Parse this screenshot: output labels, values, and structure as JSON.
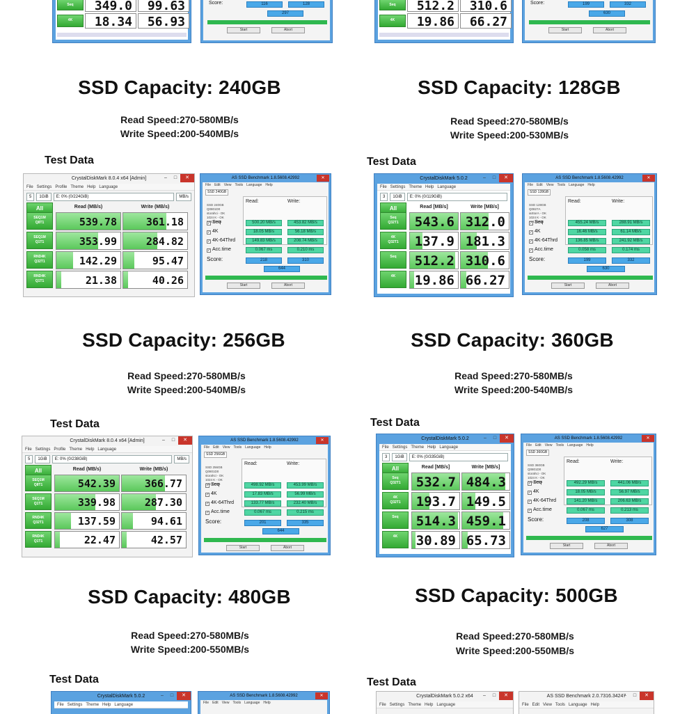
{
  "common": {
    "read_prefix": "Read Speed:",
    "write_prefix": "Write Speed:",
    "test_data": "Test Data"
  },
  "panels": [
    {
      "capacity": "SSD Capacity: 240GB",
      "read": "Read Speed:270-580MB/s",
      "write": "Write Speed:200-540MB/s"
    },
    {
      "capacity": "SSD Capacity: 128GB",
      "read": "Read Speed:270-580MB/s",
      "write": "Write Speed:200-530MB/s"
    },
    {
      "capacity": "SSD Capacity: 256GB",
      "read": "Read Speed:270-580MB/s",
      "write": "Write Speed:200-540MB/s"
    },
    {
      "capacity": "SSD Capacity: 360GB",
      "read": "Read Speed:270-580MB/s",
      "write": "Write Speed:200-540MB/s"
    },
    {
      "capacity": "SSD Capacity: 480GB",
      "read": "Read Speed:270-580MB/s",
      "write": "Write Speed:200-550MB/s"
    },
    {
      "capacity": "SSD Capacity: 500GB",
      "read": "Read Speed:270-580MB/s",
      "write": "Write Speed:200-550MB/s"
    }
  ],
  "top_partial": {
    "left_cdm": {
      "row1": [
        "349.0",
        "99.63"
      ],
      "row2": [
        "18.34",
        "56.93"
      ],
      "row2_label": "4K",
      "row1_label": "Seq"
    },
    "left_asssd": {
      "score_label": "Score:",
      "read_score": "116",
      "write_score": "128",
      "total": "297",
      "start": "Start",
      "abort": "Abort"
    },
    "right_cdm": {
      "row1": [
        "512.2",
        "310.6"
      ],
      "row2": [
        "19.86",
        "66.27"
      ],
      "row2_label": "4K",
      "row1_label": "Seq"
    },
    "right_asssd": {
      "score_label": "Score:",
      "read_score": "199",
      "write_score": "332",
      "total": "630",
      "start": "Start",
      "abort": "Abort"
    }
  },
  "cdm8": {
    "menu": [
      "File",
      "Settings",
      "Profile",
      "Theme",
      "Help",
      "Language"
    ],
    "all": "All",
    "read_hdr": "Read (MB/s)",
    "write_hdr": "Write (MB/s)",
    "count": "5",
    "size": "1GiB",
    "unit": "MB/s",
    "row_labels": [
      [
        "SEQ1M",
        "Q8T1"
      ],
      [
        "SEQ1M",
        "Q1T1"
      ],
      [
        "RND4K",
        "Q32T1"
      ],
      [
        "RND4K",
        "Q1T1"
      ]
    ]
  },
  "cdm5": {
    "menu": [
      "File",
      "Settings",
      "Theme",
      "Help",
      "Language"
    ],
    "all": "All",
    "read_hdr": "Read [MB/s]",
    "write_hdr": "Write [MB/s]",
    "count": "3",
    "size": "1GiB",
    "row_labels": [
      [
        "Seq",
        "Q32T1"
      ],
      [
        "4K",
        "Q32T1"
      ],
      [
        "Seq",
        ""
      ],
      [
        "4K",
        ""
      ]
    ]
  },
  "asssd_common": {
    "menu": [
      "File",
      "Edit",
      "View",
      "Tools",
      "Language",
      "Help"
    ],
    "read_hdr": "Read:",
    "write_hdr": "Write:",
    "tests": [
      "Seq",
      "4K",
      "4K-64Thrd",
      "Acc.time"
    ],
    "score_label": "Score:",
    "start": "Start",
    "abort": "Abort"
  },
  "benchmarks": [
    {
      "cdm_title": "CrystalDiskMark 8.0.4 x64 [Admin]",
      "drive": "E: 0% (0/224GiB)",
      "values": [
        [
          "539.78",
          "361.18"
        ],
        [
          "353.99",
          "284.82"
        ],
        [
          "142.29",
          "95.47"
        ],
        [
          "21.38",
          "40.26"
        ]
      ],
      "as_title": "AS SSD Benchmark 1.8.5608.42992",
      "as_values": [
        [
          "500.20 MB/s",
          "453.82 MB/s"
        ],
        [
          "18.05 MB/s",
          "56.18 MB/s"
        ],
        [
          "149.83 MB/s",
          "208.74 MB/s"
        ],
        [
          "0.067 ms",
          "0.210 ms"
        ]
      ],
      "as_scores": [
        "218",
        "310",
        "644"
      ],
      "as_info": [
        "SSD 240GB",
        "Q0801D0",
        "storahci - OK",
        "1024 K - OK",
        "223.57 GB"
      ]
    },
    {
      "cdm_title": "CrystalDiskMark 5.0.2",
      "drive": "E: 0% (0/119GiB)",
      "values": [
        [
          "543.6",
          "312.0"
        ],
        [
          "137.9",
          "181.3"
        ],
        [
          "512.2",
          "310.6"
        ],
        [
          "19.86",
          "66.27"
        ]
      ],
      "as_title": "AS SSD Benchmark 1.8.5608.42992",
      "as_values": [
        [
          "455.24 MB/s",
          "288.91 MB/s"
        ],
        [
          "16.46 MB/s",
          "61.14 MB/s"
        ],
        [
          "136.85 MB/s",
          "241.92 MB/s"
        ],
        [
          "0.058 ms",
          "0.174 ms"
        ]
      ],
      "as_scores": [
        "199",
        "332",
        "630"
      ],
      "as_info": [
        "SSD 128GB",
        "Q0827A",
        "iaStorA - OK",
        "1024 K - OK",
        "119.24 GB"
      ]
    },
    {
      "cdm_title": "CrystalDiskMark 8.0.4 x64 [Admin]",
      "drive": "E: 0% (0/238GiB)",
      "values": [
        [
          "542.39",
          "366.77"
        ],
        [
          "339.98",
          "287.30"
        ],
        [
          "137.59",
          "94.61"
        ],
        [
          "22.47",
          "42.57"
        ]
      ],
      "as_title": "AS SSD Benchmark 1.8.5608.42992",
      "as_values": [
        [
          "498.92 MB/s",
          "453.99 MB/s"
        ],
        [
          "17.83 MB/s",
          "56.99 MB/s"
        ],
        [
          "133.77 MB/s",
          "232.40 MB/s"
        ],
        [
          "0.067 ms",
          "0.215 ms"
        ]
      ],
      "as_scores": [
        "201",
        "335",
        "644"
      ],
      "as_info": [
        "SSD 256GB",
        "Q0801D0",
        "storahci - OK",
        "1024 K - OK",
        "238.47 GB"
      ]
    },
    {
      "cdm_title": "CrystalDiskMark 5.0.2",
      "drive": "E: 0% (0/335GiB)",
      "values": [
        [
          "532.7",
          "484.3"
        ],
        [
          "193.7",
          "149.5"
        ],
        [
          "514.3",
          "459.1"
        ],
        [
          "30.89",
          "65.73"
        ]
      ],
      "as_title": "AS SSD Benchmark 1.8.5608.42992",
      "as_values": [
        [
          "492.29 MB/s",
          "441.06 MB/s"
        ],
        [
          "18.05 MB/s",
          "56.97 MB/s"
        ],
        [
          "141.20 MB/s",
          "206.63 MB/s"
        ],
        [
          "0.067 ms",
          "0.213 ms"
        ]
      ],
      "as_scores": [
        "208",
        "308",
        "627"
      ],
      "as_info": [
        "SSD 360GB",
        "Q0801D0",
        "storahci - OK",
        "1024 K - OK",
        "335.27 GB"
      ]
    }
  ],
  "bottom_partial": {
    "left_cdm_title": "CrystalDiskMark 5.0.2",
    "left_as_title": "AS SSD Benchmark 1.8.5608.42992",
    "right_cdm_title": "CrystalDiskMark 5.0.2 x64",
    "right_as_title": "AS SSD Benchmark 2.0.7316.34247"
  },
  "colors": {
    "cdm_green": "#33a933",
    "window_blue": "#5ba2e0",
    "result_teal": "#4fd6a3",
    "score_blue": "#4aa8e8",
    "close_red": "#c9352b"
  }
}
